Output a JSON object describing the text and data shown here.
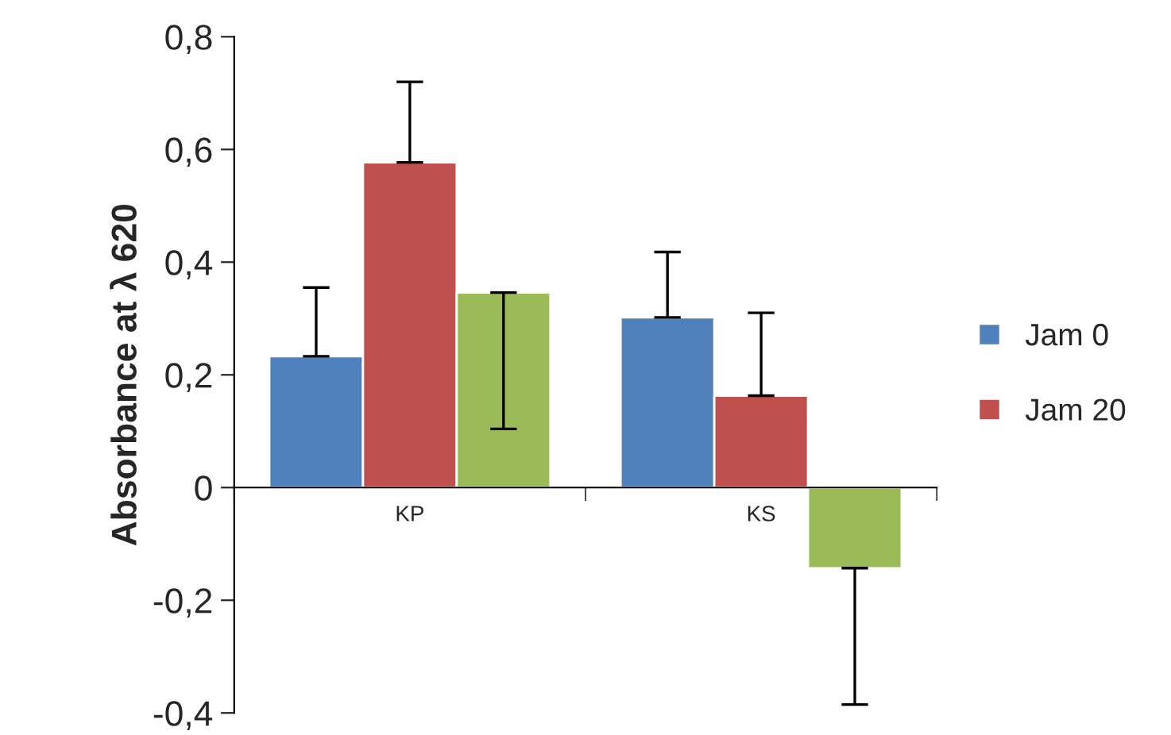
{
  "chart_data": {
    "type": "bar",
    "ylabel": "Absorbance at λ 620",
    "categories": [
      "KP",
      "KS"
    ],
    "series": [
      {
        "name": "Jam 0",
        "color": "#4f81bd",
        "values": [
          0.233,
          0.302
        ],
        "errors": [
          [
            0.233,
            0.355
          ],
          [
            0.302,
            0.418
          ]
        ]
      },
      {
        "name": "Jam 20",
        "color": "#c0504d",
        "values": [
          0.577,
          0.163
        ],
        "errors": [
          [
            0.577,
            0.72
          ],
          [
            0.163,
            0.31
          ]
        ]
      },
      {
        "color": "#9bbb59",
        "values": [
          0.346,
          -0.143
        ],
        "errors": [
          [
            0.104,
            0.346
          ],
          [
            -0.385,
            -0.143
          ]
        ]
      }
    ],
    "ylim": [
      -0.4,
      0.8
    ],
    "yticks": [
      {
        "value": -0.4,
        "label": "-0,4"
      },
      {
        "value": -0.2,
        "label": "-0,2"
      },
      {
        "value": 0,
        "label": "0"
      },
      {
        "value": 0.2,
        "label": "0,2"
      },
      {
        "value": 0.4,
        "label": "0,4"
      },
      {
        "value": 0.6,
        "label": "0,6"
      },
      {
        "value": 0.8,
        "label": "0,8"
      }
    ],
    "grid": false,
    "legend": "right"
  }
}
